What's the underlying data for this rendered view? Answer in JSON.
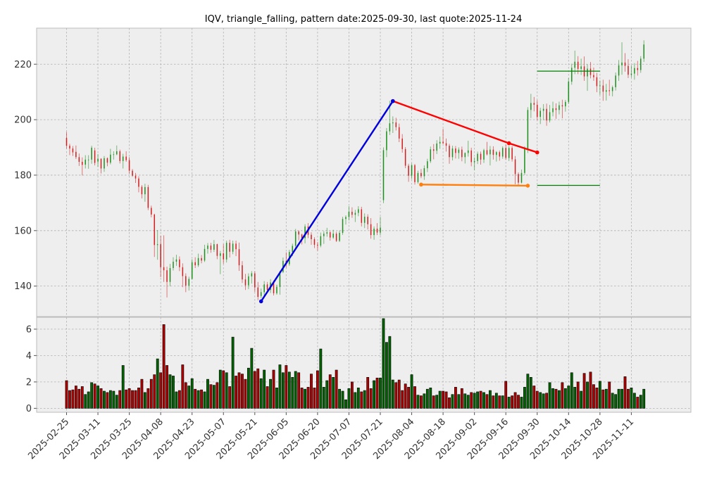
{
  "chart_data": {
    "type": "candlestick",
    "title": "IQV, triangle_falling, pattern date:2025-09-30, last quote:2025-11-24",
    "x_tick_labels": [
      "2025-02-25",
      "2025-03-11",
      "2025-03-25",
      "2025-04-08",
      "2025-04-23",
      "2025-05-07",
      "2025-05-21",
      "2025-06-05",
      "2025-06-20",
      "2025-07-07",
      "2025-07-21",
      "2025-08-04",
      "2025-08-18",
      "2025-09-02",
      "2025-09-16",
      "2025-09-30",
      "2025-10-14",
      "2025-10-28",
      "2025-11-11"
    ],
    "x_tick_index": [
      0,
      10,
      20,
      30,
      40,
      50,
      60,
      70,
      80,
      90,
      100,
      110,
      120,
      130,
      140,
      150,
      160,
      170,
      180
    ],
    "price_axis": {
      "ylim": [
        129,
        233
      ],
      "ticks": [
        140,
        160,
        180,
        200,
        220
      ]
    },
    "volume_axis": {
      "ylim": [
        -0.3,
        6.9
      ],
      "ticks": [
        0,
        2,
        4,
        6
      ]
    },
    "up_color": "#008000",
    "down_color": "#cc0000",
    "pattern_lines": [
      {
        "name": "upper-trend",
        "color": "#ff0000",
        "points": [
          [
            104,
            206.7
          ],
          [
            141,
            191.5
          ],
          [
            150,
            188.2
          ]
        ]
      },
      {
        "name": "lower-trend",
        "color": "#ff7f0e",
        "points": [
          [
            113,
            176.6
          ],
          [
            147,
            176.2
          ]
        ]
      },
      {
        "name": "prior-move",
        "color": "#0000dd",
        "points": [
          [
            62,
            134.5
          ],
          [
            104,
            206.7
          ]
        ]
      }
    ],
    "levels": [
      {
        "name": "target-high",
        "color": "#008000",
        "y": 217.5,
        "x0": 150,
        "x1": 170
      },
      {
        "name": "target-low",
        "color": "#008000",
        "y": 176.3,
        "x0": 150,
        "x1": 170
      }
    ],
    "candles": [
      [
        193.4,
        195.6,
        189.6,
        190.6,
        2.1
      ],
      [
        190.6,
        191.3,
        187.2,
        189.6,
        1.35
      ],
      [
        189.6,
        190.5,
        186.9,
        188.2,
        1.4
      ],
      [
        188.4,
        190.7,
        185.8,
        186.5,
        1.7
      ],
      [
        186.5,
        187.8,
        183.3,
        184.8,
        1.45
      ],
      [
        184.8,
        186.4,
        179.9,
        183.7,
        1.65
      ],
      [
        183.8,
        187.2,
        182.4,
        185.6,
        1.05
      ],
      [
        185.5,
        187.2,
        182.3,
        185.6,
        1.25
      ],
      [
        185.6,
        190.6,
        184.1,
        189.9,
        1.95
      ],
      [
        188.9,
        189.9,
        183.5,
        184.4,
        1.85
      ],
      [
        184.9,
        187.6,
        183.0,
        185.9,
        1.7
      ],
      [
        185.9,
        186.1,
        180.6,
        182.4,
        1.5
      ],
      [
        182.4,
        186.9,
        181.2,
        186.1,
        1.3
      ],
      [
        186.1,
        186.4,
        183.2,
        184.5,
        1.2
      ],
      [
        184.5,
        189.5,
        183.9,
        187.4,
        1.35
      ],
      [
        187.4,
        188.6,
        185.6,
        187.5,
        1.3
      ],
      [
        187.5,
        190.7,
        187.2,
        188.6,
        1.0
      ],
      [
        188.6,
        189.2,
        184.2,
        185.1,
        1.35
      ],
      [
        185.1,
        187.7,
        182.4,
        186.7,
        3.25
      ],
      [
        186.7,
        188.6,
        184.8,
        185.4,
        1.4
      ],
      [
        185.4,
        186.5,
        180.6,
        181.6,
        1.5
      ],
      [
        181.6,
        182.2,
        179.4,
        179.8,
        1.35
      ],
      [
        179.8,
        180.8,
        177.2,
        178.8,
        1.35
      ],
      [
        178.8,
        179.6,
        173.8,
        175.8,
        1.55
      ],
      [
        175.8,
        176.4,
        171.6,
        173.1,
        2.2
      ],
      [
        173.1,
        176.9,
        170.4,
        175.7,
        1.2
      ],
      [
        175.7,
        176.5,
        167.4,
        168.2,
        1.5
      ],
      [
        168.2,
        169.0,
        164.8,
        165.8,
        2.2
      ],
      [
        165.8,
        166.1,
        150.5,
        154.8,
        2.55
      ],
      [
        154.8,
        160.2,
        149.5,
        155.1,
        3.75
      ],
      [
        155.1,
        158.2,
        143.2,
        146.8,
        2.7
      ],
      [
        146.8,
        158.3,
        141.5,
        145.7,
        6.35
      ],
      [
        145.7,
        147.0,
        135.9,
        141.5,
        3.25
      ],
      [
        141.5,
        148.0,
        139.9,
        146.5,
        2.55
      ],
      [
        146.5,
        150.4,
        145.6,
        148.8,
        2.45
      ],
      [
        148.8,
        151.3,
        147.3,
        149.6,
        1.25
      ],
      [
        149.6,
        150.7,
        145.4,
        146.8,
        1.35
      ],
      [
        146.8,
        148.2,
        139.6,
        143.6,
        3.3
      ],
      [
        143.6,
        144.6,
        137.8,
        140.2,
        1.95
      ],
      [
        140.2,
        143.4,
        138.4,
        142.6,
        1.7
      ],
      [
        142.6,
        149.7,
        142.3,
        148.6,
        2.25
      ],
      [
        148.6,
        150.4,
        146.5,
        147.5,
        1.45
      ],
      [
        147.5,
        151.7,
        146.9,
        150.1,
        1.35
      ],
      [
        150.1,
        151.2,
        148.2,
        149.2,
        1.4
      ],
      [
        149.2,
        154.9,
        148.7,
        153.4,
        1.25
      ],
      [
        153.4,
        155.5,
        151.7,
        154.6,
        2.2
      ],
      [
        154.6,
        155.6,
        152.0,
        153.1,
        1.8
      ],
      [
        153.1,
        156.6,
        152.3,
        155.1,
        1.75
      ],
      [
        155.1,
        155.3,
        149.7,
        150.9,
        1.95
      ],
      [
        150.9,
        152.7,
        144.3,
        151.8,
        2.9
      ],
      [
        151.8,
        155.1,
        148.0,
        149.6,
        2.85
      ],
      [
        149.6,
        156.4,
        148.5,
        155.6,
        2.7
      ],
      [
        155.6,
        156.7,
        150.3,
        152.4,
        1.65
      ],
      [
        152.4,
        156.4,
        151.5,
        155.3,
        5.4
      ],
      [
        155.3,
        156.4,
        150.8,
        153.3,
        2.45
      ],
      [
        153.3,
        155.7,
        145.5,
        147.5,
        2.7
      ],
      [
        147.5,
        149.0,
        141.1,
        142.4,
        2.6
      ],
      [
        142.4,
        144.4,
        138.6,
        140.3,
        2.2
      ],
      [
        140.3,
        144.6,
        138.9,
        143.5,
        3.05
      ],
      [
        143.5,
        145.4,
        140.9,
        144.6,
        4.55
      ],
      [
        144.6,
        145.3,
        137.9,
        139.5,
        2.8
      ],
      [
        139.5,
        141.5,
        134.9,
        136.1,
        3.0
      ],
      [
        136.4,
        139.1,
        135.6,
        137.8,
        2.25
      ],
      [
        137.8,
        141.8,
        136.3,
        140.6,
        2.9
      ],
      [
        140.6,
        141.5,
        137.7,
        138.6,
        1.65
      ],
      [
        138.6,
        142.5,
        137.5,
        141.3,
        2.2
      ],
      [
        141.3,
        142.0,
        136.6,
        137.4,
        2.9
      ],
      [
        137.4,
        140.5,
        136.9,
        139.7,
        1.55
      ],
      [
        139.7,
        145.5,
        136.9,
        145.1,
        3.3
      ],
      [
        145.1,
        150.3,
        144.7,
        149.1,
        2.7
      ],
      [
        149.1,
        152.2,
        146.7,
        147.9,
        3.25
      ],
      [
        147.9,
        153.1,
        147.3,
        152.3,
        2.75
      ],
      [
        152.3,
        155.3,
        150.8,
        154.5,
        2.35
      ],
      [
        154.5,
        160.6,
        153.5,
        159.7,
        2.8
      ],
      [
        159.7,
        160.1,
        156.5,
        158.6,
        2.7
      ],
      [
        158.6,
        158.9,
        155.0,
        157.3,
        1.55
      ],
      [
        157.3,
        162.3,
        155.4,
        161.5,
        1.45
      ],
      [
        161.5,
        162.7,
        157.3,
        158.5,
        1.6
      ],
      [
        158.5,
        159.4,
        154.9,
        156.9,
        2.6
      ],
      [
        156.9,
        157.6,
        153.7,
        154.9,
        1.55
      ],
      [
        154.9,
        155.9,
        152.8,
        154.6,
        2.85
      ],
      [
        154.6,
        159.3,
        154.0,
        158.0,
        4.5
      ],
      [
        158.0,
        159.8,
        155.2,
        158.9,
        1.6
      ],
      [
        158.9,
        161.0,
        157.8,
        159.4,
        2.1
      ],
      [
        159.4,
        159.8,
        156.4,
        157.5,
        2.55
      ],
      [
        157.5,
        160.3,
        157.0,
        158.9,
        2.35
      ],
      [
        158.9,
        159.6,
        155.9,
        156.3,
        2.9
      ],
      [
        156.3,
        160.0,
        155.9,
        159.2,
        1.45
      ],
      [
        159.2,
        165.0,
        158.5,
        164.2,
        1.3
      ],
      [
        164.2,
        165.5,
        162.2,
        164.9,
        0.65
      ],
      [
        164.9,
        168.8,
        163.7,
        166.8,
        1.5
      ],
      [
        166.8,
        168.4,
        164.6,
        165.7,
        2.0
      ],
      [
        165.7,
        167.5,
        163.1,
        166.4,
        1.2
      ],
      [
        166.4,
        168.8,
        165.2,
        167.7,
        1.55
      ],
      [
        167.7,
        168.6,
        161.5,
        162.8,
        1.25
      ],
      [
        162.8,
        166.2,
        160.9,
        165.0,
        1.35
      ],
      [
        165.0,
        165.9,
        160.4,
        162.3,
        2.35
      ],
      [
        162.3,
        164.5,
        157.1,
        158.4,
        1.5
      ],
      [
        158.4,
        161.5,
        156.7,
        160.7,
        2.1
      ],
      [
        160.7,
        162.7,
        158.4,
        159.3,
        2.3
      ],
      [
        159.3,
        165.0,
        158.3,
        161.1,
        2.3
      ],
      [
        171.0,
        190.0,
        169.9,
        189.0,
        6.8
      ],
      [
        189.0,
        197.0,
        186.5,
        195.8,
        5.0
      ],
      [
        195.8,
        206.8,
        194.5,
        198.7,
        5.45
      ],
      [
        198.7,
        201.2,
        195.2,
        199.0,
        2.15
      ],
      [
        199.0,
        200.7,
        196.1,
        197.3,
        1.95
      ],
      [
        197.3,
        198.6,
        191.9,
        193.2,
        2.15
      ],
      [
        193.2,
        194.8,
        188.1,
        189.4,
        1.35
      ],
      [
        189.4,
        190.1,
        182.5,
        183.4,
        1.85
      ],
      [
        183.4,
        184.1,
        177.6,
        179.8,
        1.6
      ],
      [
        179.8,
        184.2,
        178.6,
        183.6,
        2.55
      ],
      [
        183.6,
        184.0,
        176.6,
        177.5,
        1.65
      ],
      [
        177.5,
        181.6,
        176.9,
        180.8,
        1.0
      ],
      [
        180.8,
        182.2,
        178.9,
        179.6,
        0.95
      ],
      [
        179.6,
        183.5,
        178.3,
        182.5,
        1.1
      ],
      [
        182.5,
        185.9,
        181.1,
        185.0,
        1.45
      ],
      [
        185.0,
        190.3,
        184.4,
        189.3,
        1.55
      ],
      [
        189.3,
        191.2,
        185.7,
        188.8,
        0.95
      ],
      [
        188.8,
        192.6,
        187.6,
        191.4,
        1.0
      ],
      [
        191.4,
        193.9,
        189.5,
        192.0,
        1.3
      ],
      [
        192.0,
        196.7,
        191.2,
        191.5,
        1.3
      ],
      [
        191.5,
        193.2,
        188.5,
        190.6,
        1.25
      ],
      [
        190.6,
        191.3,
        184.1,
        186.5,
        0.8
      ],
      [
        186.5,
        190.6,
        185.3,
        189.6,
        1.05
      ],
      [
        189.6,
        190.5,
        186.0,
        188.0,
        1.6
      ],
      [
        188.0,
        190.0,
        185.9,
        189.2,
        1.05
      ],
      [
        189.2,
        190.3,
        185.0,
        186.5,
        1.5
      ],
      [
        186.5,
        188.2,
        184.2,
        188.0,
        1.1
      ],
      [
        188.0,
        192.4,
        186.7,
        188.9,
        1.0
      ],
      [
        188.9,
        189.9,
        183.2,
        184.7,
        1.2
      ],
      [
        184.7,
        186.4,
        181.9,
        185.1,
        1.15
      ],
      [
        185.1,
        188.5,
        184.0,
        187.7,
        1.25
      ],
      [
        187.7,
        188.5,
        183.8,
        185.6,
        1.3
      ],
      [
        185.6,
        189.5,
        184.4,
        189.0,
        1.2
      ],
      [
        189.0,
        192.0,
        187.1,
        187.5,
        1.05
      ],
      [
        187.5,
        190.5,
        183.5,
        189.2,
        1.35
      ],
      [
        189.2,
        190.4,
        185.6,
        187.3,
        0.95
      ],
      [
        187.3,
        188.7,
        184.9,
        188.3,
        1.15
      ],
      [
        188.3,
        188.9,
        185.2,
        186.7,
        0.95
      ],
      [
        186.7,
        190.4,
        185.9,
        189.8,
        0.95
      ],
      [
        189.8,
        191.0,
        185.6,
        186.2,
        2.05
      ],
      [
        186.2,
        190.5,
        185.1,
        189.8,
        0.85
      ],
      [
        189.8,
        190.5,
        184.9,
        185.7,
        0.95
      ],
      [
        185.7,
        186.9,
        176.7,
        180.4,
        1.2
      ],
      [
        180.4,
        181.0,
        176.4,
        177.3,
        1.0
      ],
      [
        177.3,
        182.0,
        177.0,
        180.8,
        0.85
      ],
      [
        180.8,
        190.4,
        180.1,
        189.6,
        1.6
      ],
      [
        189.6,
        204.5,
        188.0,
        203.5,
        2.6
      ],
      [
        203.5,
        209.3,
        200.6,
        206.0,
        2.35
      ],
      [
        206.0,
        208.2,
        203.0,
        205.4,
        1.7
      ],
      [
        205.4,
        207.0,
        199.8,
        201.0,
        1.3
      ],
      [
        201.0,
        204.3,
        198.4,
        203.2,
        1.2
      ],
      [
        203.2,
        205.6,
        199.8,
        203.9,
        1.1
      ],
      [
        203.9,
        205.8,
        197.8,
        199.7,
        1.15
      ],
      [
        199.7,
        205.3,
        199.0,
        202.7,
        1.95
      ],
      [
        202.7,
        206.5,
        201.2,
        204.1,
        1.5
      ],
      [
        204.1,
        205.9,
        200.3,
        203.5,
        1.45
      ],
      [
        203.5,
        206.5,
        201.9,
        205.2,
        1.35
      ],
      [
        205.2,
        207.2,
        200.5,
        204.8,
        1.95
      ],
      [
        204.8,
        207.1,
        202.9,
        206.4,
        1.5
      ],
      [
        206.4,
        215.0,
        205.7,
        213.7,
        1.7
      ],
      [
        213.7,
        220.2,
        212.6,
        218.7,
        2.7
      ],
      [
        218.7,
        224.9,
        216.4,
        220.9,
        1.6
      ],
      [
        220.9,
        222.9,
        216.4,
        218.3,
        2.0
      ],
      [
        218.3,
        222.0,
        216.1,
        219.2,
        1.3
      ],
      [
        219.2,
        222.8,
        214.0,
        215.6,
        2.65
      ],
      [
        215.6,
        220.0,
        210.4,
        218.4,
        2.0
      ],
      [
        218.4,
        220.8,
        214.9,
        216.1,
        2.75
      ],
      [
        216.1,
        218.8,
        214.0,
        215.3,
        1.8
      ],
      [
        215.3,
        216.9,
        209.9,
        212.1,
        1.55
      ],
      [
        212.1,
        214.1,
        208.9,
        212.3,
        2.05
      ],
      [
        212.3,
        214.4,
        206.8,
        210.1,
        1.4
      ],
      [
        210.1,
        212.9,
        206.9,
        210.6,
        1.45
      ],
      [
        210.6,
        214.4,
        208.6,
        210.3,
        2.0
      ],
      [
        210.3,
        212.3,
        208.4,
        211.7,
        1.15
      ],
      [
        211.7,
        217.0,
        210.5,
        215.9,
        1.05
      ],
      [
        215.9,
        221.5,
        214.0,
        219.6,
        1.45
      ],
      [
        219.6,
        227.9,
        216.2,
        220.6,
        1.45
      ],
      [
        220.6,
        224.0,
        217.3,
        219.4,
        2.4
      ],
      [
        219.4,
        221.8,
        215.0,
        216.2,
        1.45
      ],
      [
        216.2,
        219.6,
        215.2,
        216.6,
        1.55
      ],
      [
        216.6,
        220.4,
        214.4,
        218.6,
        1.15
      ],
      [
        218.6,
        221.2,
        215.9,
        217.9,
        0.85
      ],
      [
        217.9,
        222.9,
        216.9,
        222.0,
        1.0
      ],
      [
        222.0,
        228.6,
        220.8,
        227.1,
        1.45
      ]
    ]
  }
}
